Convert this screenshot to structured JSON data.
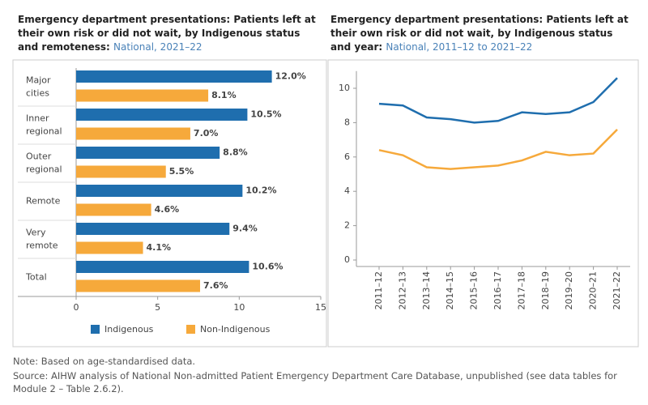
{
  "chart_data": [
    {
      "type": "hbar",
      "title": "Emergency department presentations: Patients left at their own risk or did not wait, by Indigenous status and remoteness:",
      "subtitle": "National, 2021–22",
      "categories": [
        "Major cities",
        "Inner regional",
        "Outer regional",
        "Remote",
        "Very remote",
        "Total"
      ],
      "series": [
        {
          "name": "Indigenous",
          "color": "#1f6eae",
          "values": [
            12.0,
            10.5,
            8.8,
            10.2,
            9.4,
            10.6
          ],
          "value_labels": [
            "12.0%",
            "10.5%",
            "8.8%",
            "10.2%",
            "9.4%",
            "10.6%"
          ]
        },
        {
          "name": "Non-Indigenous",
          "color": "#f6a93b",
          "values": [
            8.1,
            7.0,
            5.5,
            4.6,
            4.1,
            7.6
          ],
          "value_labels": [
            "8.1%",
            "7.0%",
            "5.5%",
            "4.6%",
            "4.1%",
            "7.6%"
          ]
        }
      ],
      "xlim": [
        0,
        15
      ],
      "xticks": [
        0,
        5,
        10,
        15
      ],
      "legend": "bottom"
    },
    {
      "type": "line",
      "title": "Emergency department presentations: Patients left at their own risk or did not wait, by Indigenous status and year:",
      "subtitle": "National, 2011–12 to 2021–22",
      "categories": [
        "2011–12",
        "2012–13",
        "2013–14",
        "2014–15",
        "2015–16",
        "2016–17",
        "2017–18",
        "2018–19",
        "2019–20",
        "2020–21",
        "2021–22"
      ],
      "series": [
        {
          "name": "Indigenous",
          "color": "#1f6eae",
          "values": [
            9.1,
            9.0,
            8.3,
            8.2,
            8.0,
            8.1,
            8.6,
            8.5,
            8.6,
            9.2,
            10.6
          ]
        },
        {
          "name": "Non-Indigenous",
          "color": "#f6a93b",
          "values": [
            6.4,
            6.1,
            5.4,
            5.3,
            5.4,
            5.5,
            5.8,
            6.3,
            6.1,
            6.2,
            7.6
          ]
        }
      ],
      "ylim": [
        0,
        11
      ],
      "yticks": [
        0,
        2,
        4,
        6,
        8,
        10
      ]
    }
  ],
  "note": "Note: Based on age-standardised data.",
  "source": "Source: AIHW analysis of National Non-admitted Patient Emergency Department Care Database, unpublished (see data tables for Module 2 – Table 2.6.2)."
}
